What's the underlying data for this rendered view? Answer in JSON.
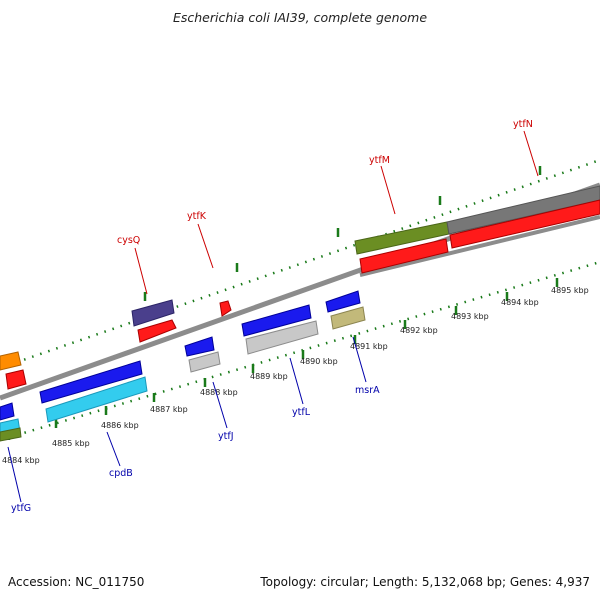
{
  "title": "Escherichia coli IAI39, complete genome",
  "footer": {
    "accession": "Accession: NC_011750",
    "topology": "Topology: circular; Length: 5,132,068 bp; Genes: 4,937"
  },
  "colors": {
    "forward_label": "#cc0000",
    "reverse_label": "#0000aa",
    "backbone": "#8c8c8c",
    "ticks": "#1a7a1a"
  },
  "scale_ticks": [
    {
      "label": "4884 kbp"
    },
    {
      "label": "4885 kbp"
    },
    {
      "label": "4886 kbp"
    },
    {
      "label": "4887 kbp"
    },
    {
      "label": "4888 kbp"
    },
    {
      "label": "4889 kbp"
    },
    {
      "label": "4890 kbp"
    },
    {
      "label": "4891 kbp"
    },
    {
      "label": "4892 kbp"
    },
    {
      "label": "4893 kbp"
    },
    {
      "label": "4894 kbp"
    },
    {
      "label": "4895 kbp"
    }
  ],
  "forward_gene_labels": [
    "cysQ",
    "ytfK",
    "ytfM",
    "ytfN"
  ],
  "reverse_gene_labels": [
    "ytfG",
    "cpdB",
    "ytfJ",
    "ytfL",
    "msrA"
  ]
}
